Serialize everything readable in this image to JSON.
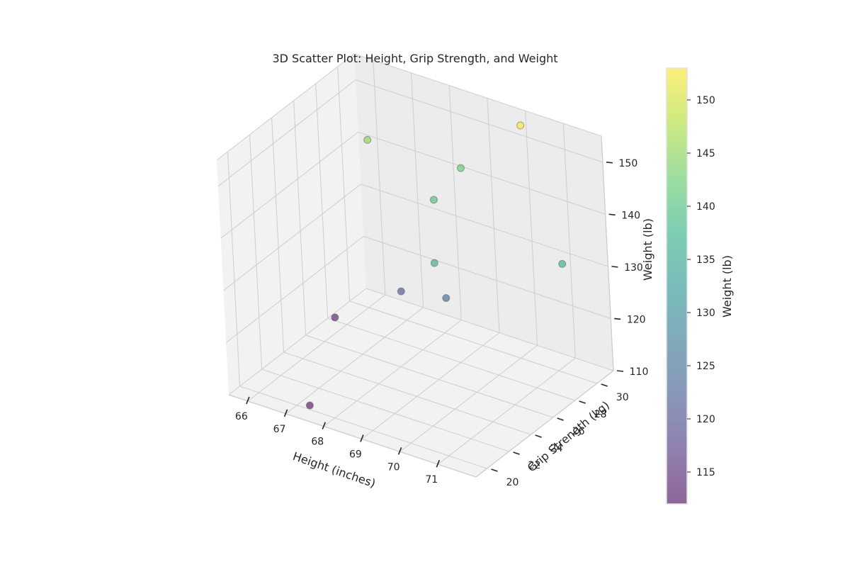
{
  "chart_data": {
    "type": "scatter",
    "projection": "3d",
    "title": "3D Scatter Plot: Height, Grip Strength, and Weight",
    "xlabel": "Height (inches)",
    "ylabel": "Grip Strength (kg)",
    "zlabel": "Weight (lb)",
    "colorbar_label": "Weight (lb)",
    "colormap": "viridis",
    "color_range": [
      112,
      153
    ],
    "grid": true,
    "x_ticks": [
      66,
      67,
      68,
      69,
      70,
      71
    ],
    "y_ticks": [
      20,
      22,
      24,
      26,
      28,
      30
    ],
    "z_ticks": [
      110,
      120,
      130,
      140,
      150
    ],
    "colorbar_ticks": [
      115,
      120,
      125,
      130,
      135,
      140,
      145,
      150
    ],
    "x_range": [
      65.5,
      72
    ],
    "y_range": [
      19,
      31.5
    ],
    "z_range": [
      110,
      155
    ],
    "points": [
      {
        "x": 67.5,
        "y": 19.5,
        "z": 112
      },
      {
        "x": 66.0,
        "y": 27.0,
        "z": 113
      },
      {
        "x": 67.5,
        "y": 28.0,
        "z": 120
      },
      {
        "x": 69.0,
        "y": 27.0,
        "z": 124
      },
      {
        "x": 69.5,
        "y": 24.5,
        "z": 136
      },
      {
        "x": 66.5,
        "y": 29.0,
        "z": 145
      },
      {
        "x": 68.5,
        "y": 28.0,
        "z": 140
      },
      {
        "x": 68.5,
        "y": 30.5,
        "z": 142
      },
      {
        "x": 70.0,
        "y": 31.0,
        "z": 153
      },
      {
        "x": 72.0,
        "y": 27.5,
        "z": 137
      }
    ]
  }
}
